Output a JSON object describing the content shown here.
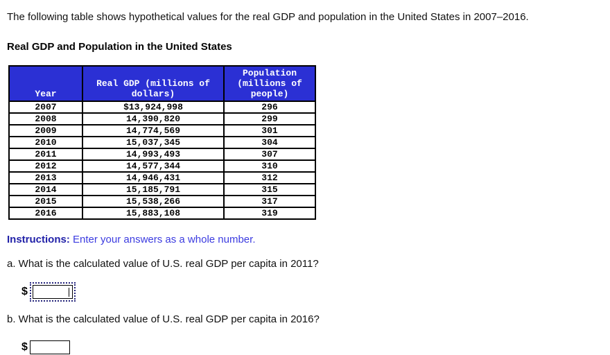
{
  "intro": "The following table shows hypothetical values for the real GDP and population in the United States in 2007–2016.",
  "table_title": "Real GDP and Population in the United States",
  "table": {
    "columns": [
      "Year",
      "Real GDP (millions of dollars)",
      "Population (millions of people)"
    ],
    "rows": [
      [
        "2007",
        "$13,924,998",
        "296"
      ],
      [
        "2008",
        "14,390,820",
        "299"
      ],
      [
        "2009",
        "14,774,569",
        "301"
      ],
      [
        "2010",
        "15,037,345",
        "304"
      ],
      [
        "2011",
        "14,993,493",
        "307"
      ],
      [
        "2012",
        "14,577,344",
        "310"
      ],
      [
        "2013",
        "14,946,431",
        "312"
      ],
      [
        "2014",
        "15,185,791",
        "315"
      ],
      [
        "2015",
        "15,538,266",
        "317"
      ],
      [
        "2016",
        "15,883,108",
        "319"
      ]
    ],
    "header_bg": "#2B30D4",
    "header_text_color": "#FFFFFF",
    "border_color": "#000000"
  },
  "instructions": {
    "label": "Instructions:",
    "text": "Enter your answers as a whole number."
  },
  "questions": [
    {
      "id": "a",
      "text": "a. What is the calculated value of U.S. real GDP per capita in 2011?",
      "currency": "$",
      "value": "",
      "focused": true
    },
    {
      "id": "b",
      "text": "b. What is the calculated value of U.S. real GDP per capita in 2016?",
      "currency": "$",
      "value": "",
      "focused": false
    }
  ]
}
